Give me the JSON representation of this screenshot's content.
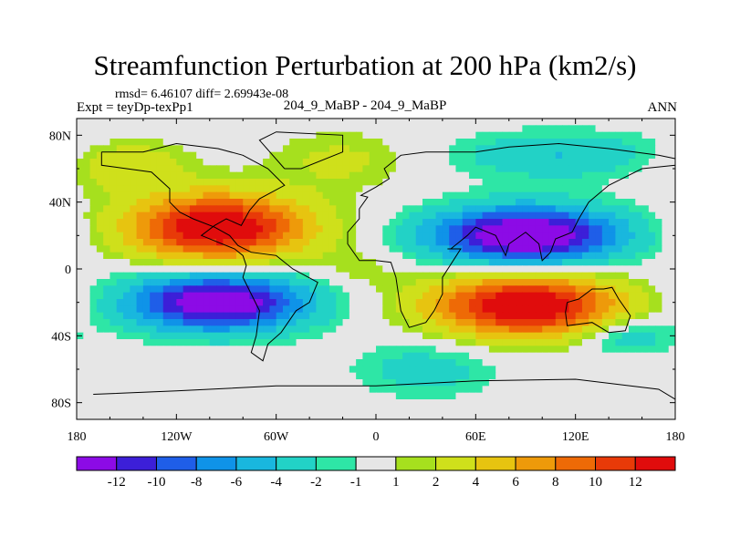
{
  "chart_data": {
    "type": "heatmap",
    "title": "Streamfunction Perturbation at 200 hPa (km2/s)",
    "stats_line": "rmsd= 6.46107 diff= 2.69943e-08",
    "left_label": "Expt = teyDp-texPp1",
    "center_label": "204_9_MaBP - 204_9_MaBP",
    "right_label": "ANN",
    "x_ticks": [
      "180",
      "120W",
      "60W",
      "0",
      "60E",
      "120E",
      "180"
    ],
    "y_ticks": [
      "80N",
      "40N",
      "0",
      "40S",
      "80S"
    ],
    "xlim": [
      -180,
      180
    ],
    "ylim": [
      -90,
      90
    ],
    "colorbar": {
      "labels": [
        "-12",
        "-10",
        "-8",
        "-6",
        "-4",
        "-2",
        "-1",
        "1",
        "2",
        "4",
        "6",
        "8",
        "10",
        "12"
      ],
      "colors": [
        "#8c0be6",
        "#3c1fd8",
        "#1f5ee8",
        "#0f93e8",
        "#19b7de",
        "#22d2c6",
        "#2ee6a6",
        "#e6e6e6",
        "#a6e01e",
        "#cfe01b",
        "#e7c410",
        "#ee9a0a",
        "#ee6a06",
        "#e83a08",
        "#e00c0c"
      ]
    },
    "features": [
      {
        "name": "positive-center-north-pacific",
        "lon": -95,
        "lat": 25,
        "value": 12
      },
      {
        "name": "negative-center-south-pacific",
        "lon": -95,
        "lat": -20,
        "value": -12
      },
      {
        "name": "negative-center-asia",
        "lon": 90,
        "lat": 20,
        "value": -12
      },
      {
        "name": "positive-center-indian-ocean",
        "lon": 90,
        "lat": -22,
        "value": 12
      }
    ]
  }
}
